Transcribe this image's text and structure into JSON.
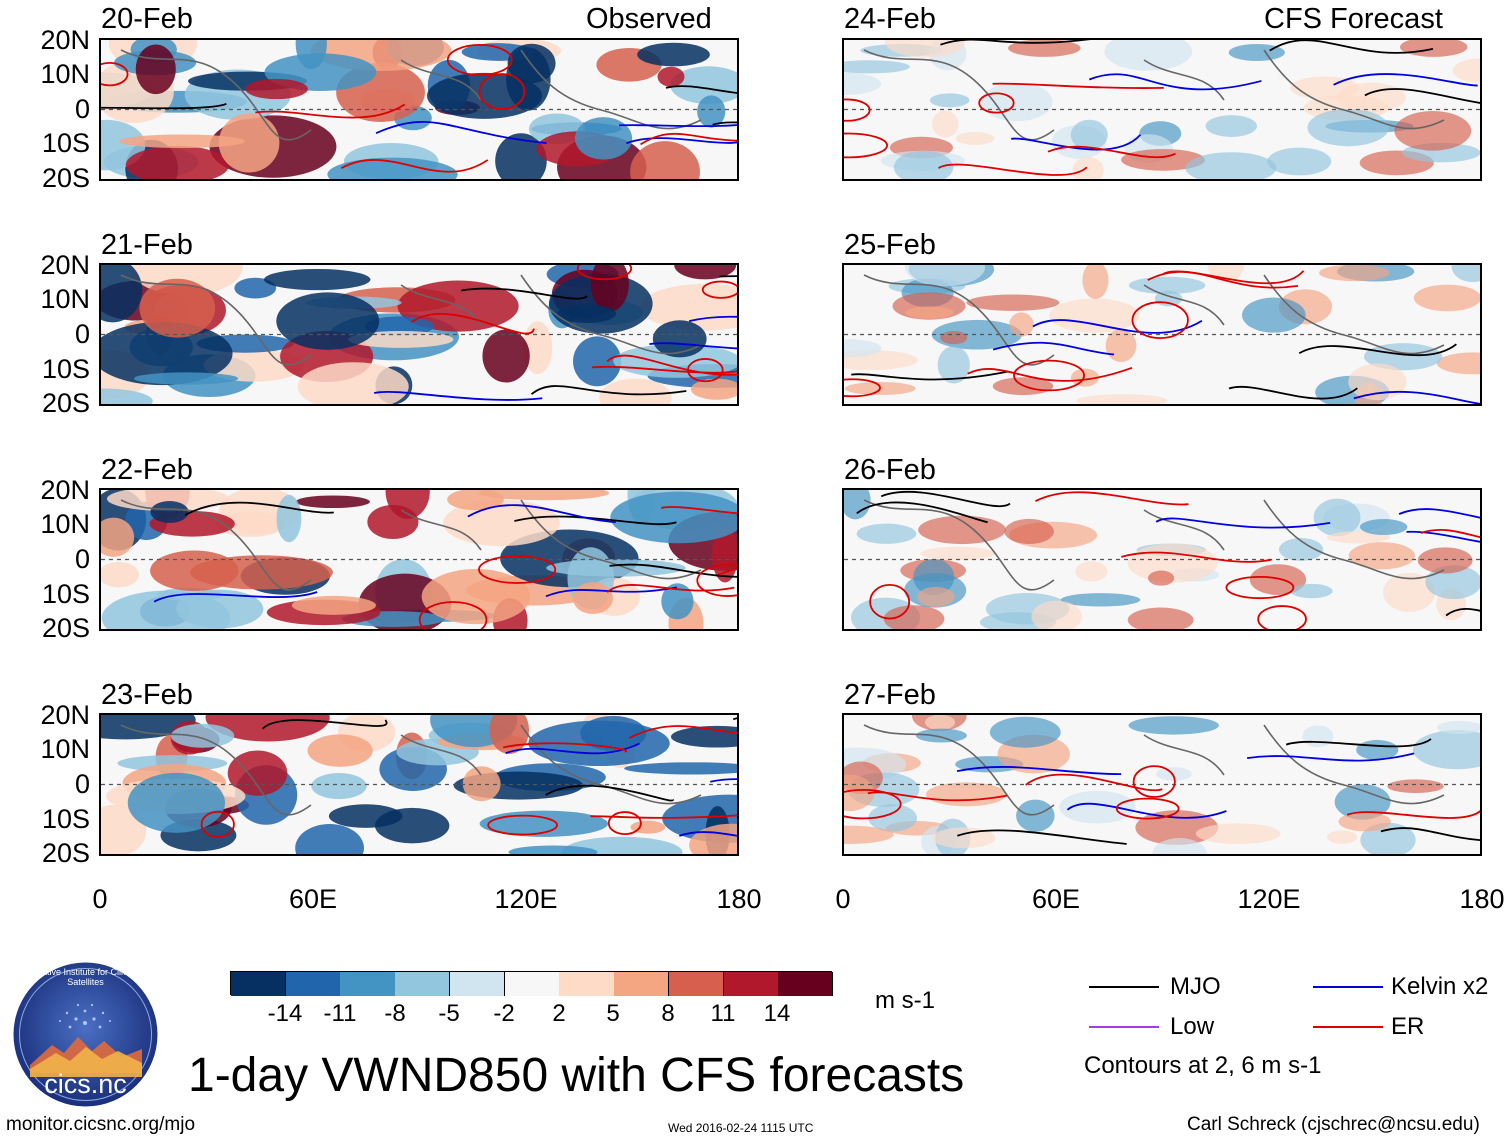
{
  "header": {
    "left_label": "Observed",
    "right_label": "CFS Forecast"
  },
  "panels_observed": [
    "20-Feb",
    "21-Feb",
    "22-Feb",
    "23-Feb"
  ],
  "panels_forecast": [
    "24-Feb",
    "25-Feb",
    "26-Feb",
    "27-Feb"
  ],
  "lat_ticks": [
    "20N",
    "10N",
    "0",
    "10S",
    "20S"
  ],
  "lon_ticks": [
    "0",
    "60E",
    "120E",
    "180"
  ],
  "colorbar": {
    "ticks": [
      "-14",
      "-11",
      "-8",
      "-5",
      "-2",
      "2",
      "5",
      "8",
      "11",
      "14"
    ],
    "units": "m s-1",
    "colors": [
      "#053061",
      "#2166ac",
      "#4393c3",
      "#92c5de",
      "#d1e5f0",
      "#f7f7f7",
      "#fddbc7",
      "#f4a582",
      "#d6604d",
      "#b2182b",
      "#67001f"
    ]
  },
  "legend": {
    "mjo": {
      "label": "MJO",
      "color": "#000000"
    },
    "kelvin": {
      "label": "Kelvin x2",
      "color": "#0000dd"
    },
    "low": {
      "label": "Low",
      "color": "#a040e0"
    },
    "er": {
      "label": "ER",
      "color": "#dd0000"
    },
    "note": "Contours at 2, 6 m s-1"
  },
  "title": "1-day VWND850 with CFS forecasts",
  "logo_text": "cics.nc",
  "logo_arc_text": "Cooperative Institute for Climate and Satellites",
  "footer": {
    "url": "monitor.cicsnc.org/mjo",
    "timestamp": "Wed 2016-02-24 1115 UTC",
    "credit": "Carl Schreck (cjschrec@ncsu.edu)"
  }
}
